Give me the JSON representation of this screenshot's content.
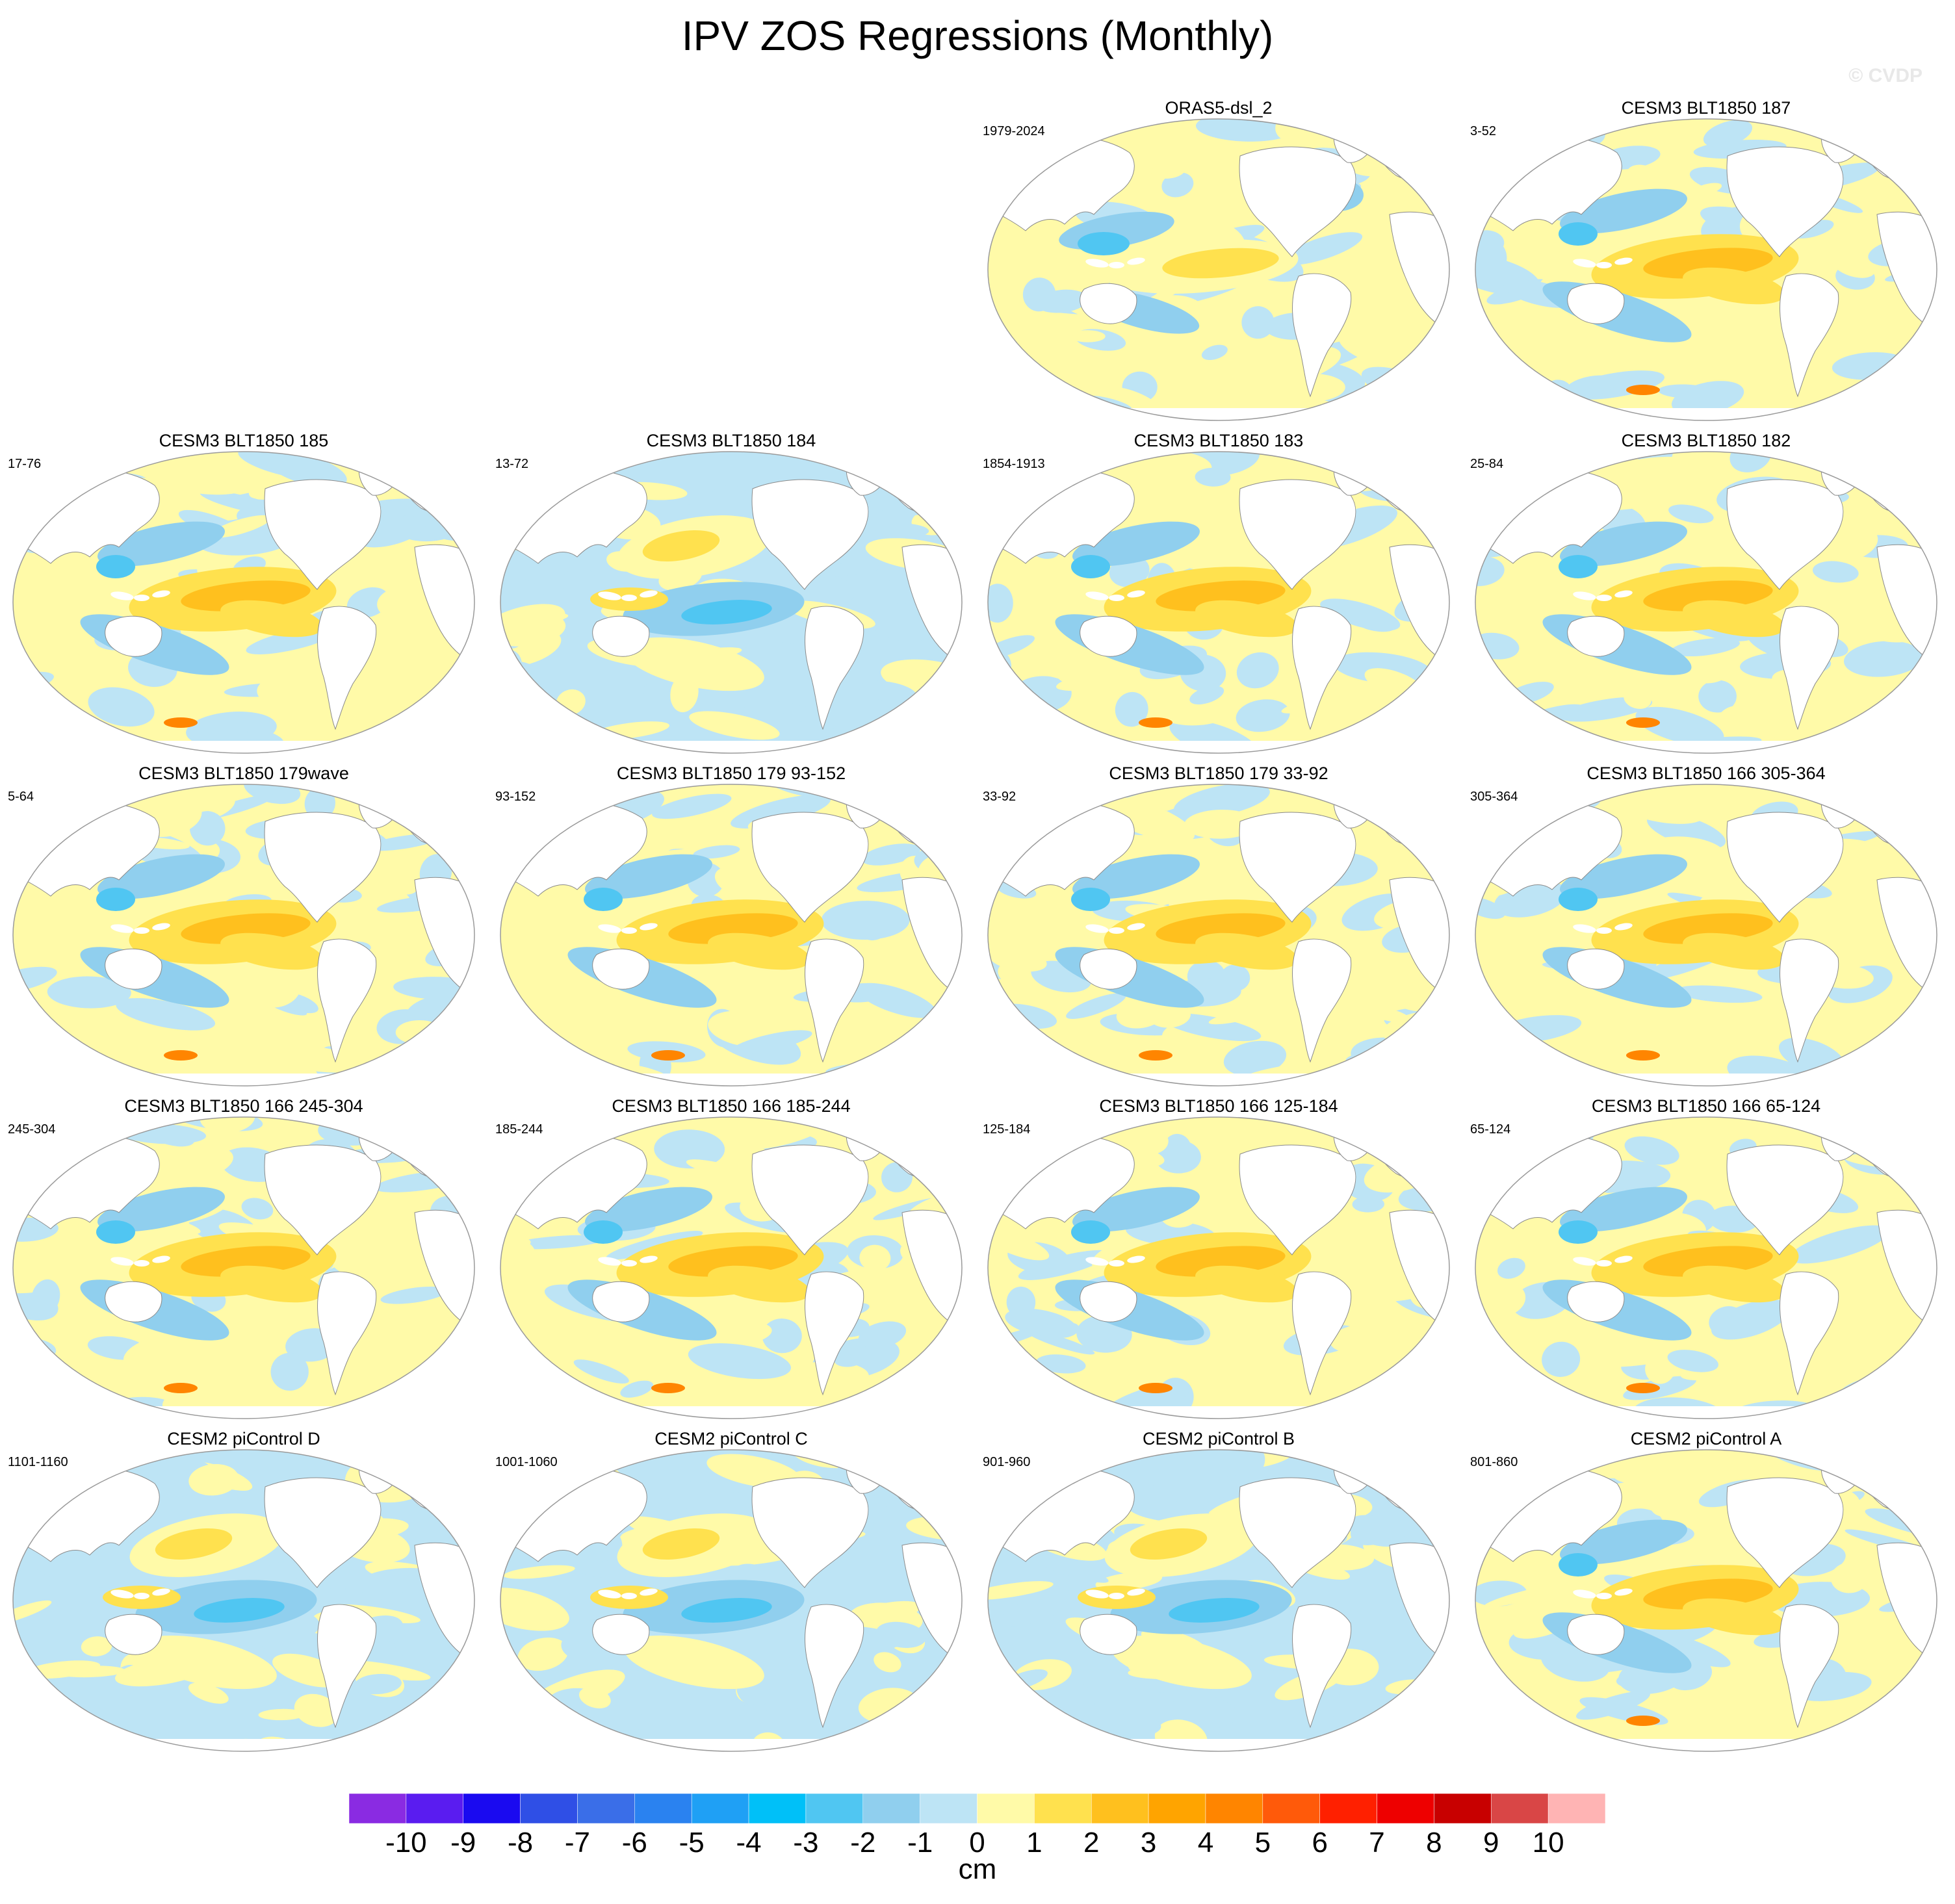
{
  "figure": {
    "title": "IPV ZOS Regressions (Monthly)",
    "copyright": "© CVDP"
  },
  "panels": [
    {
      "title": "ORAS5-dsl_2",
      "years": "1979-2024",
      "pattern": "obs"
    },
    {
      "title": "CESM3 BLT1850 187",
      "years": "3-52",
      "pattern": "pos"
    },
    {
      "title": "CESM3 BLT1850 185",
      "years": "17-76",
      "pattern": "pos"
    },
    {
      "title": "CESM3 BLT1850 184",
      "years": "13-72",
      "pattern": "neg"
    },
    {
      "title": "CESM3 BLT1850 183",
      "years": "1854-1913",
      "pattern": "pos"
    },
    {
      "title": "CESM3 BLT1850 182",
      "years": "25-84",
      "pattern": "pos"
    },
    {
      "title": "CESM3 BLT1850 179wave",
      "years": "5-64",
      "pattern": "pos"
    },
    {
      "title": "CESM3 BLT1850 179 93-152",
      "years": "93-152",
      "pattern": "pos"
    },
    {
      "title": "CESM3 BLT1850 179 33-92",
      "years": "33-92",
      "pattern": "pos"
    },
    {
      "title": "CESM3 BLT1850 166 305-364",
      "years": "305-364",
      "pattern": "pos"
    },
    {
      "title": "CESM3 BLT1850 166 245-304",
      "years": "245-304",
      "pattern": "pos"
    },
    {
      "title": "CESM3 BLT1850 166 185-244",
      "years": "185-244",
      "pattern": "pos"
    },
    {
      "title": "CESM3 BLT1850 166 125-184",
      "years": "125-184",
      "pattern": "pos"
    },
    {
      "title": "CESM3 BLT1850 166 65-124",
      "years": "65-124",
      "pattern": "pos"
    },
    {
      "title": "CESM2 piControl D",
      "years": "1101-1160",
      "pattern": "neg"
    },
    {
      "title": "CESM2 piControl C",
      "years": "1001-1060",
      "pattern": "neg"
    },
    {
      "title": "CESM2 piControl B",
      "years": "901-960",
      "pattern": "neg"
    },
    {
      "title": "CESM2 piControl A",
      "years": "801-860",
      "pattern": "pos"
    }
  ],
  "colorbar": {
    "unit": "cm",
    "labels": [
      "-10",
      "-9",
      "-8",
      "-7",
      "-6",
      "-5",
      "-4",
      "-3",
      "-2",
      "-1",
      "0",
      "1",
      "2",
      "3",
      "4",
      "5",
      "6",
      "7",
      "8",
      "9",
      "10"
    ],
    "colors": [
      "#8a2be2",
      "#5a1cf0",
      "#1a0af0",
      "#2f4fe6",
      "#3a6ee8",
      "#2a82f0",
      "#1fa0f5",
      "#00c0f8",
      "#50c6f2",
      "#90cfee",
      "#bde4f5",
      "#fffaa8",
      "#ffe14e",
      "#ffc01e",
      "#ffa400",
      "#ff8500",
      "#ff5a0a",
      "#ff2000",
      "#ee0000",
      "#c80000",
      "#d94646",
      "#ffb4b4"
    ]
  },
  "map_palette": {
    "land": "#ffffff",
    "coast": "#8a8a8a",
    "border": "#9a9a9a",
    "weak_neg": "#bde4f5",
    "mid_neg": "#90cfee",
    "strong_neg": "#50c6f2",
    "weak_pos": "#fffaa8",
    "mid_pos": "#ffe14e",
    "strong_pos": "#ffc01e",
    "extreme_pos": "#ff8500",
    "extreme_neg": "#1fa0f5"
  }
}
